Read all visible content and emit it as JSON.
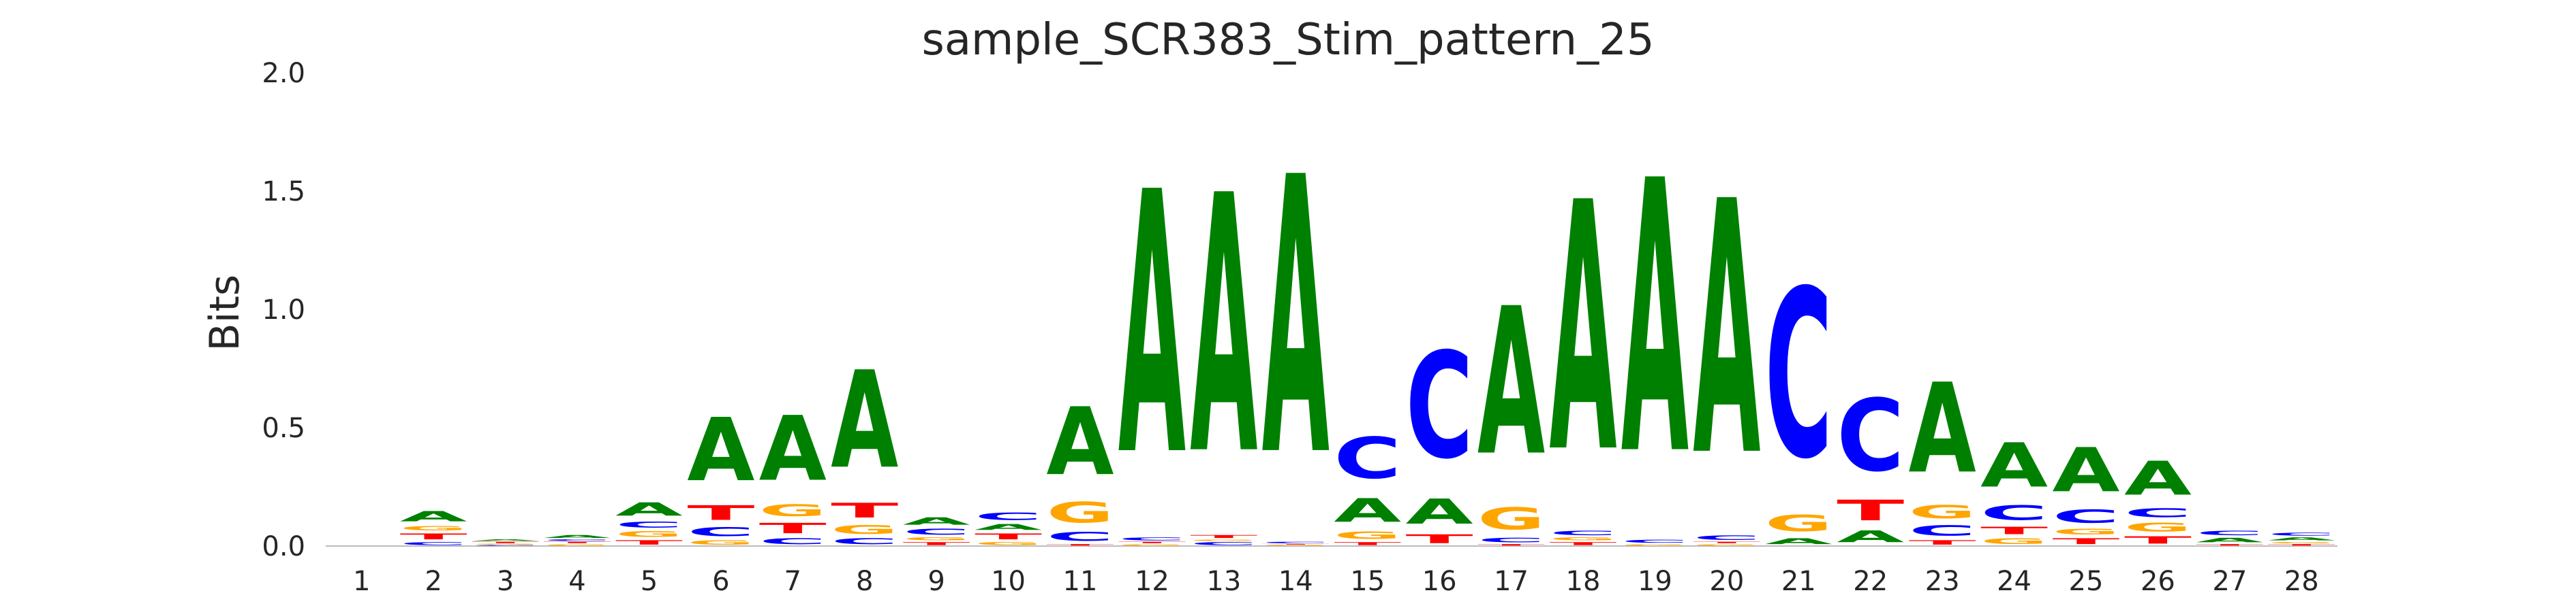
{
  "chart_data": {
    "type": "sequence-logo",
    "title": "sample_SCR383_Stim_pattern_25",
    "ylabel": "Bits",
    "xlabel": "",
    "ylim": [
      0,
      2.0
    ],
    "yticks": [
      "0.0",
      "0.5",
      "1.0",
      "1.5",
      "2.0"
    ],
    "ytick_values": [
      0.0,
      0.5,
      1.0,
      1.5,
      2.0
    ],
    "positions": [
      "1",
      "2",
      "3",
      "4",
      "5",
      "6",
      "7",
      "8",
      "9",
      "10",
      "11",
      "12",
      "13",
      "14",
      "15",
      "16",
      "17",
      "18",
      "19",
      "20",
      "21",
      "22",
      "23",
      "24",
      "25",
      "26",
      "27",
      "28"
    ],
    "colors": {
      "A": "#008000",
      "C": "#0000ff",
      "G": "#ffa500",
      "T": "#ff0000"
    },
    "stacks": [
      [],
      [
        [
          "C",
          0.02
        ],
        [
          "T",
          0.04
        ],
        [
          "G",
          0.03
        ],
        [
          "A",
          0.07
        ]
      ],
      [
        [
          "C",
          0.005
        ],
        [
          "G",
          0.005
        ],
        [
          "T",
          0.01
        ],
        [
          "A",
          0.01
        ]
      ],
      [
        [
          "G",
          0.01
        ],
        [
          "T",
          0.01
        ],
        [
          "C",
          0.01
        ],
        [
          "A",
          0.02
        ]
      ],
      [
        [
          "T",
          0.03
        ],
        [
          "G",
          0.04
        ],
        [
          "C",
          0.04
        ],
        [
          "A",
          0.09
        ]
      ],
      [
        [
          "G",
          0.03
        ],
        [
          "C",
          0.06
        ],
        [
          "T",
          0.1
        ],
        [
          "A",
          0.43
        ]
      ],
      [
        [
          "C",
          0.04
        ],
        [
          "T",
          0.07
        ],
        [
          "G",
          0.08
        ],
        [
          "A",
          0.44
        ]
      ],
      [
        [
          "C",
          0.04
        ],
        [
          "G",
          0.06
        ],
        [
          "T",
          0.1
        ],
        [
          "A",
          0.66
        ]
      ],
      [
        [
          "T",
          0.02
        ],
        [
          "G",
          0.02
        ],
        [
          "C",
          0.04
        ],
        [
          "A",
          0.05
        ]
      ],
      [
        [
          "G",
          0.02
        ],
        [
          "T",
          0.04
        ],
        [
          "A",
          0.04
        ],
        [
          "C",
          0.05
        ]
      ],
      [
        [
          "T",
          0.01
        ],
        [
          "C",
          0.06
        ],
        [
          "G",
          0.14
        ],
        [
          "A",
          0.46
        ]
      ],
      [
        [
          "G",
          0.01
        ],
        [
          "T",
          0.01
        ],
        [
          "C",
          0.02
        ],
        [
          "A",
          1.78
        ]
      ],
      [
        [
          "C",
          0.02
        ],
        [
          "G",
          0.01
        ],
        [
          "T",
          0.02
        ],
        [
          "A",
          1.75
        ]
      ],
      [
        [
          "G",
          0.005
        ],
        [
          "T",
          0.005
        ],
        [
          "C",
          0.01
        ],
        [
          "A",
          1.88
        ]
      ],
      [
        [
          "T",
          0.02
        ],
        [
          "G",
          0.05
        ],
        [
          "A",
          0.16
        ],
        [
          "C",
          0.28
        ]
      ],
      [
        [
          "T",
          0.06
        ],
        [
          "A",
          0.17
        ],
        [
          "C",
          0.72
        ]
      ],
      [
        [
          "T",
          0.01
        ],
        [
          "C",
          0.03
        ],
        [
          "G",
          0.15
        ],
        [
          "A",
          1.0
        ]
      ],
      [
        [
          "T",
          0.02
        ],
        [
          "G",
          0.02
        ],
        [
          "C",
          0.03
        ],
        [
          "A",
          1.69
        ]
      ],
      [
        [
          "G",
          0.01
        ],
        [
          "C",
          0.02
        ],
        [
          "A",
          1.85
        ]
      ],
      [
        [
          "G",
          0.01
        ],
        [
          "T",
          0.01
        ],
        [
          "C",
          0.03
        ],
        [
          "A",
          1.72
        ]
      ],
      [
        [
          "A",
          0.04
        ],
        [
          "G",
          0.11
        ],
        [
          "C",
          1.14
        ]
      ],
      [
        [
          "A",
          0.08
        ],
        [
          "T",
          0.14
        ],
        [
          "C",
          0.49
        ]
      ],
      [
        [
          "T",
          0.03
        ],
        [
          "C",
          0.07
        ],
        [
          "G",
          0.09
        ],
        [
          "A",
          0.61
        ]
      ],
      [
        [
          "G",
          0.04
        ],
        [
          "T",
          0.05
        ],
        [
          "C",
          0.1
        ],
        [
          "A",
          0.3
        ]
      ],
      [
        [
          "T",
          0.04
        ],
        [
          "G",
          0.04
        ],
        [
          "C",
          0.09
        ],
        [
          "A",
          0.3
        ]
      ],
      [
        [
          "T",
          0.05
        ],
        [
          "G",
          0.06
        ],
        [
          "C",
          0.06
        ],
        [
          "A",
          0.23
        ]
      ],
      [
        [
          "T",
          0.01
        ],
        [
          "A",
          0.03
        ],
        [
          "C",
          0.03
        ]
      ],
      [
        [
          "T",
          0.01
        ],
        [
          "G",
          0.01
        ],
        [
          "A",
          0.02
        ],
        [
          "C",
          0.02
        ]
      ]
    ]
  }
}
